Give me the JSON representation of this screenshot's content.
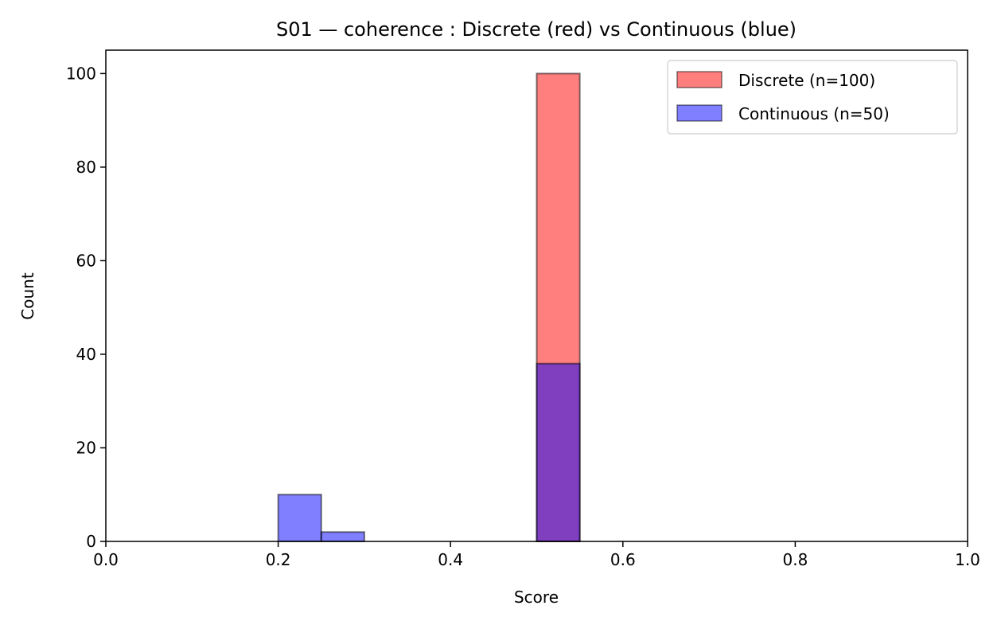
{
  "chart_data": {
    "type": "histogram",
    "title": "S01 — coherence : Discrete (red) vs Continuous (blue)",
    "xlabel": "Score",
    "ylabel": "Count",
    "xlim": [
      0.0,
      1.0
    ],
    "ylim": [
      0,
      105
    ],
    "xticks": [
      "0.0",
      "0.2",
      "0.4",
      "0.6",
      "0.8",
      "1.0"
    ],
    "yticks": [
      "0",
      "20",
      "40",
      "60",
      "80",
      "100"
    ],
    "grid": false,
    "legend_position": "top-right",
    "series": [
      {
        "name": "Discrete (n=100)",
        "color": "#ff0000",
        "bins": [
          {
            "x0": 0.5,
            "x1": 0.55,
            "count": 100
          }
        ]
      },
      {
        "name": "Continuous (n=50)",
        "color": "#0000ff",
        "bins": [
          {
            "x0": 0.2,
            "x1": 0.25,
            "count": 10
          },
          {
            "x0": 0.25,
            "x1": 0.3,
            "count": 2
          },
          {
            "x0": 0.5,
            "x1": 0.55,
            "count": 38
          }
        ]
      }
    ]
  }
}
